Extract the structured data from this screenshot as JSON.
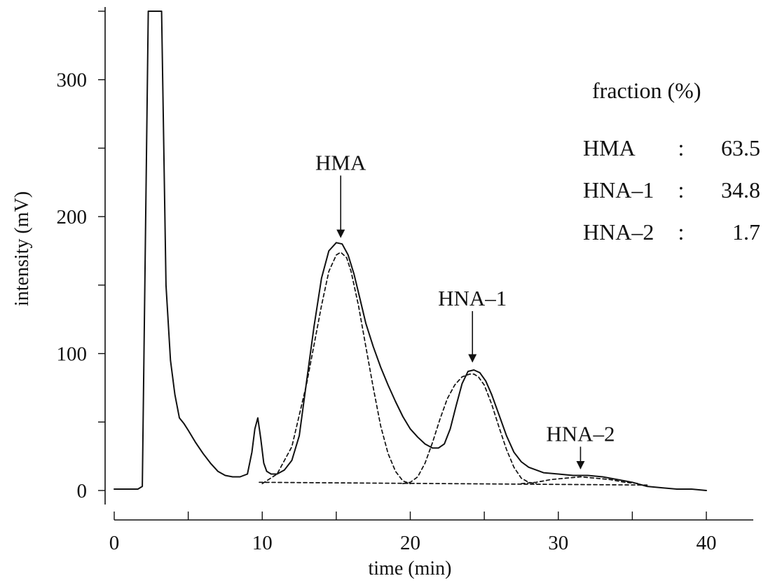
{
  "chart_data": {
    "type": "line",
    "title": "",
    "xlabel": "time (min)",
    "ylabel": "intensity (mV)",
    "xlim": [
      0,
      40
    ],
    "ylim": [
      0,
      350
    ],
    "x_ticks": [
      0,
      10,
      20,
      30,
      40
    ],
    "y_ticks": [
      0,
      100,
      200,
      300
    ],
    "grid": false,
    "series": [
      {
        "style": "solid",
        "x": [
          0,
          1.4,
          1.6,
          1.9,
          2.3,
          2.6,
          2.9,
          3.2,
          3.5,
          3.8,
          4.1,
          4.4,
          4.7,
          5.0,
          5.5,
          6.0,
          6.5,
          7.0,
          7.5,
          8.0,
          8.5,
          9.0,
          9.3,
          9.5,
          9.7,
          9.9,
          10.1,
          10.3,
          10.6,
          11.0,
          11.5,
          12.0,
          12.5,
          13.0,
          13.5,
          14.0,
          14.5,
          15.0,
          15.4,
          15.8,
          16.2,
          16.6,
          17.0,
          17.5,
          18.0,
          18.5,
          19.0,
          19.5,
          20.0,
          20.5,
          21.0,
          21.5,
          21.9,
          22.3,
          22.7,
          23.1,
          23.5,
          23.9,
          24.3,
          24.7,
          25.1,
          25.5,
          26.0,
          26.5,
          27.0,
          27.5,
          28.0,
          28.5,
          29.0,
          30.0,
          31.0,
          32.0,
          33.0,
          34.0,
          35.0,
          36.0,
          37.0,
          38.0,
          39.0,
          40.0
        ],
        "y": [
          1,
          1,
          1,
          3,
          350,
          350,
          350,
          350,
          150,
          95,
          70,
          53,
          49,
          44,
          35,
          27,
          20,
          14,
          11,
          10,
          10,
          12,
          28,
          45,
          53,
          38,
          20,
          14,
          12,
          12,
          15,
          22,
          40,
          80,
          120,
          155,
          175,
          181,
          180,
          172,
          158,
          140,
          122,
          105,
          90,
          77,
          65,
          54,
          45,
          39,
          34,
          31,
          31,
          34,
          45,
          62,
          78,
          87,
          88,
          86,
          80,
          70,
          55,
          40,
          28,
          21,
          17,
          15,
          13,
          12,
          11,
          11,
          10,
          8,
          6,
          3,
          2,
          1,
          1,
          0
        ]
      },
      {
        "name": "HMA",
        "style": "dashed",
        "x": [
          10.0,
          11.0,
          12.0,
          13.0,
          14.0,
          14.5,
          15.0,
          15.3,
          15.7,
          16.0,
          16.5,
          17.0,
          17.5,
          18.0,
          18.5,
          19.0,
          19.5,
          20.0
        ],
        "y": [
          5,
          12,
          32,
          78,
          135,
          160,
          172,
          174,
          170,
          160,
          135,
          105,
          75,
          47,
          27,
          14,
          7,
          5
        ]
      },
      {
        "name": "HNA-1",
        "style": "dashed",
        "x": [
          19.5,
          20.0,
          20.5,
          21.0,
          21.5,
          22.0,
          22.5,
          23.0,
          23.5,
          24.0,
          24.3,
          24.6,
          25.0,
          25.5,
          26.0,
          26.5,
          27.0,
          27.5,
          28.0,
          28.5
        ],
        "y": [
          5,
          6,
          10,
          20,
          35,
          52,
          67,
          77,
          83,
          85,
          85,
          83,
          77,
          63,
          46,
          30,
          17,
          9,
          6,
          5
        ]
      },
      {
        "name": "HNA-2",
        "style": "dashed",
        "x": [
          27.5,
          28.5,
          29.5,
          30.5,
          31.5,
          32.5,
          33.5,
          34.5,
          35.5
        ],
        "y": [
          5,
          6,
          8,
          9,
          10,
          9,
          8,
          6,
          5
        ]
      },
      {
        "name": "baseline",
        "style": "dashed",
        "x": [
          9.8,
          36.0
        ],
        "y": [
          6,
          4
        ]
      }
    ],
    "annotations": [
      {
        "text": "HMA",
        "x": 15.3,
        "y_arrow_tip": 185,
        "y_arrow_tail": 230
      },
      {
        "text": "HNA–1",
        "x": 24.2,
        "y_arrow_tip": 94,
        "y_arrow_tail": 131
      },
      {
        "text": "HNA–2",
        "x": 31.5,
        "y_arrow_tip": 16,
        "y_arrow_tail": 32
      }
    ],
    "legend": {
      "title": "fraction (%)",
      "entries": [
        {
          "label": "HMA",
          "sep": ":",
          "value": "63.5"
        },
        {
          "label": "HNA–1",
          "sep": ":",
          "value": "34.8"
        },
        {
          "label": "HNA–2",
          "sep": ":",
          "value": "1.7"
        }
      ]
    }
  }
}
